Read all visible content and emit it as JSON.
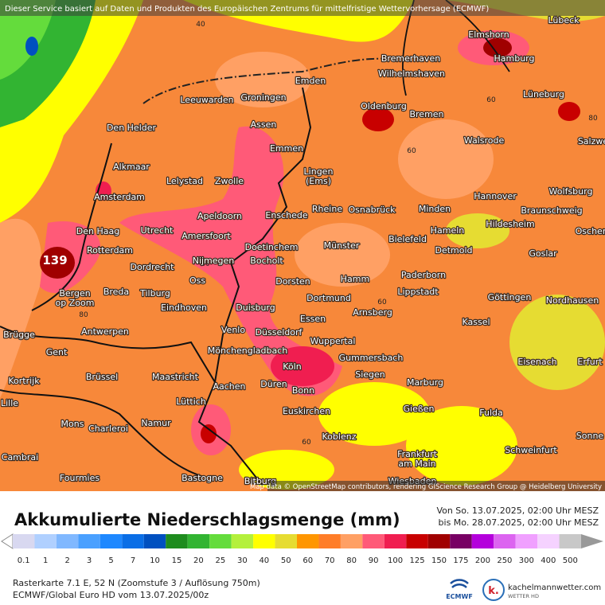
{
  "notice": "Dieser Service basiert auf Daten und Produkten des Europäischen Zentrums für mittelfristige Wettervorhersage (ECMWF)",
  "attribution": "Map data © OpenStreetMap contributors, rendering GIScience Research Group @ Heidelberg University",
  "max_label": "139",
  "contour_labels": [
    "40",
    "60",
    "80",
    "60",
    "80",
    "60",
    "80",
    "60"
  ],
  "cities": [
    [
      "Lübeck"
    ],
    [
      "Elmshorn"
    ],
    [
      "Hamburg"
    ],
    [
      "Bremerhaven"
    ],
    [
      "Wilhelmshaven"
    ],
    [
      "Emden"
    ],
    [
      "Groningen"
    ],
    [
      "Leeuwarden"
    ],
    [
      "Lüneburg"
    ],
    [
      "Oldenburg"
    ],
    [
      "Bremen"
    ],
    [
      "Assen"
    ],
    [
      "Den Helder"
    ],
    [
      "Walsrode"
    ],
    [
      "Salzwe"
    ],
    [
      "Emmen"
    ],
    [
      "Alkmaar"
    ],
    [
      "Lingen",
      "(Ems)"
    ],
    [
      "Lelystad"
    ],
    [
      "Zwolle"
    ],
    [
      "Wolfsburg"
    ],
    [
      "Hannover"
    ],
    [
      "Amsterdam"
    ],
    [
      "Rheine"
    ],
    [
      "Osnabrück"
    ],
    [
      "Minden"
    ],
    [
      "Braunschweig"
    ],
    [
      "Apeldoorn"
    ],
    [
      "Enschede"
    ],
    [
      "Hildesheim"
    ],
    [
      "Den Haag"
    ],
    [
      "Utrecht"
    ],
    [
      "Hameln"
    ],
    [
      "Oscher"
    ],
    [
      "Amersfoort"
    ],
    [
      "Bielefeld"
    ],
    [
      "Münster"
    ],
    [
      "Doetinchem"
    ],
    [
      "Rotterdam"
    ],
    [
      "Detmold"
    ],
    [
      "Goslar"
    ],
    [
      "Nijmegen"
    ],
    [
      "Bocholt"
    ],
    [
      "Dordrecht"
    ],
    [
      "Paderborn"
    ],
    [
      "Hamm"
    ],
    [
      "Oss"
    ],
    [
      "Dorsten"
    ],
    [
      "Breda"
    ],
    [
      "Tilburg"
    ],
    [
      "Bergen",
      "op Zoom"
    ],
    [
      "Lippstadt"
    ],
    [
      "Göttingen"
    ],
    [
      "Dortmund"
    ],
    [
      "Nordhausen"
    ],
    [
      "Eindhoven"
    ],
    [
      "Duisburg"
    ],
    [
      "Arnsberg"
    ],
    [
      "Essen"
    ],
    [
      "Kassel"
    ],
    [
      "Venlo"
    ],
    [
      "Antwerpen"
    ],
    [
      "Düsseldorf"
    ],
    [
      "Brügge"
    ],
    [
      "Wuppertal"
    ],
    [
      "Mönchengladbach"
    ],
    [
      "Gent"
    ],
    [
      "Gummersbach"
    ],
    [
      "Eisenach"
    ],
    [
      "Erfurt"
    ],
    [
      "Köln"
    ],
    [
      "Siegen"
    ],
    [
      "Brüssel"
    ],
    [
      "Maastricht"
    ],
    [
      "Kortrijk"
    ],
    [
      "Marburg"
    ],
    [
      "Düren"
    ],
    [
      "Aachen"
    ],
    [
      "Bonn"
    ],
    [
      "Lüttich"
    ],
    [
      "Lille"
    ],
    [
      "Gießen"
    ],
    [
      "Euskirchen"
    ],
    [
      "Fulda"
    ],
    [
      "Namur"
    ],
    [
      "Mons"
    ],
    [
      "Charleroi"
    ],
    [
      "Sonne"
    ],
    [
      "Koblenz"
    ],
    [
      "Schweinfurt"
    ],
    [
      "Frankfurt",
      "am Main"
    ],
    [
      "Cambrai"
    ],
    [
      "Fourmies"
    ],
    [
      "Bastogne"
    ],
    [
      "Bitburg"
    ],
    [
      "Wiesbaden"
    ]
  ],
  "title": "Akkumulierte Niederschlagsmenge (mm)",
  "period": [
    "Von So. 13.07.2025, 02:00 Uhr MESZ",
    "bis Mo. 28.07.2025, 02:00 Uhr MESZ"
  ],
  "legend": {
    "values": [
      0.1,
      1,
      2,
      3,
      5,
      7,
      10,
      15,
      20,
      25,
      30,
      40,
      50,
      60,
      70,
      80,
      90,
      100,
      125,
      150,
      175,
      200,
      250,
      300,
      400,
      500
    ],
    "colors": [
      "#d8d8f0",
      "#b0d0ff",
      "#80b8ff",
      "#4aa0ff",
      "#1e88ff",
      "#0a6ee6",
      "#0050c0",
      "#1e8c1e",
      "#32b432",
      "#64dc3c",
      "#b4f03c",
      "#ffff00",
      "#e6dc32",
      "#ff9600",
      "#ff7d28",
      "#ffa064",
      "#ff5a78",
      "#f01e50",
      "#c80000",
      "#a00000",
      "#780064",
      "#b400dc",
      "#dc64f0",
      "#f0a0ff",
      "#f5d2ff",
      "#c8c8c8"
    ]
  },
  "footer": [
    "Rasterkarte 7.1 E, 52 N (Zoomstufe 3 / Auflösung 750m)",
    "ECMWF/Global Euro HD vom 13.07.2025/00z"
  ],
  "logos": {
    "ecmwf": "ECMWF",
    "site": "kachelmannwetter.com",
    "tagline": "WETTER HD"
  }
}
